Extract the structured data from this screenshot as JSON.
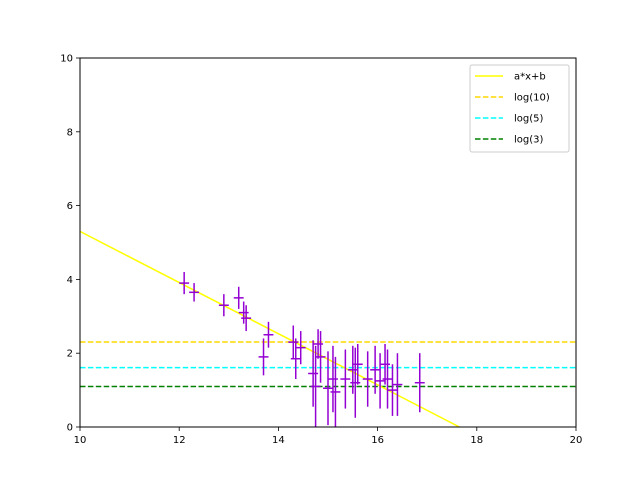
{
  "chart_data": {
    "type": "scatter",
    "title": "",
    "xlabel": "",
    "ylabel": "",
    "xlim": [
      10,
      20
    ],
    "ylim": [
      0,
      10
    ],
    "xticks": [
      10,
      12,
      14,
      16,
      18,
      20
    ],
    "yticks": [
      0,
      2,
      4,
      6,
      8,
      10
    ],
    "grid": false,
    "legend_position": "top-right",
    "series": [
      {
        "name": "a*x+b",
        "kind": "line",
        "style": "solid",
        "color": "#ffff00",
        "x": [
          10,
          17.65
        ],
        "y": [
          5.3,
          0
        ]
      },
      {
        "name": "log(10)",
        "kind": "hline",
        "style": "dashed",
        "color": "#ffd700",
        "y": 2.303
      },
      {
        "name": "log(5)",
        "kind": "hline",
        "style": "dashed",
        "color": "#00ffff",
        "y": 1.609
      },
      {
        "name": "log(3)",
        "kind": "hline",
        "style": "dashed",
        "color": "#008000",
        "y": 1.099
      }
    ],
    "errorbar_points": {
      "color": "#9400d3",
      "points": [
        {
          "x": 12.1,
          "y": 3.9,
          "xerr": 0.1,
          "yerr": 0.3
        },
        {
          "x": 12.3,
          "y": 3.65,
          "xerr": 0.1,
          "yerr": 0.25
        },
        {
          "x": 12.9,
          "y": 3.3,
          "xerr": 0.1,
          "yerr": 0.3
        },
        {
          "x": 13.2,
          "y": 3.5,
          "xerr": 0.1,
          "yerr": 0.3
        },
        {
          "x": 13.3,
          "y": 3.1,
          "xerr": 0.1,
          "yerr": 0.3
        },
        {
          "x": 13.35,
          "y": 2.95,
          "xerr": 0.1,
          "yerr": 0.35
        },
        {
          "x": 13.7,
          "y": 1.9,
          "xerr": 0.1,
          "yerr": 0.5
        },
        {
          "x": 13.8,
          "y": 2.5,
          "xerr": 0.1,
          "yerr": 0.35
        },
        {
          "x": 14.3,
          "y": 2.3,
          "xerr": 0.1,
          "yerr": 0.45
        },
        {
          "x": 14.35,
          "y": 1.85,
          "xerr": 0.1,
          "yerr": 0.55
        },
        {
          "x": 14.45,
          "y": 2.15,
          "xerr": 0.1,
          "yerr": 0.45
        },
        {
          "x": 14.7,
          "y": 1.45,
          "xerr": 0.1,
          "yerr": 0.9
        },
        {
          "x": 14.75,
          "y": 1.1,
          "xerr": 0.1,
          "yerr": 1.1
        },
        {
          "x": 14.8,
          "y": 2.25,
          "xerr": 0.1,
          "yerr": 0.4
        },
        {
          "x": 14.85,
          "y": 1.9,
          "xerr": 0.1,
          "yerr": 0.7
        },
        {
          "x": 15.0,
          "y": 1.05,
          "xerr": 0.1,
          "yerr": 1.0
        },
        {
          "x": 15.1,
          "y": 1.3,
          "xerr": 0.1,
          "yerr": 0.9
        },
        {
          "x": 15.15,
          "y": 0.95,
          "xerr": 0.1,
          "yerr": 0.95
        },
        {
          "x": 15.35,
          "y": 1.3,
          "xerr": 0.1,
          "yerr": 0.8
        },
        {
          "x": 15.5,
          "y": 1.55,
          "xerr": 0.1,
          "yerr": 0.65
        },
        {
          "x": 15.55,
          "y": 1.2,
          "xerr": 0.1,
          "yerr": 0.95
        },
        {
          "x": 15.6,
          "y": 1.7,
          "xerr": 0.1,
          "yerr": 0.55
        },
        {
          "x": 15.8,
          "y": 1.3,
          "xerr": 0.1,
          "yerr": 0.75
        },
        {
          "x": 15.95,
          "y": 1.55,
          "xerr": 0.1,
          "yerr": 0.65
        },
        {
          "x": 16.05,
          "y": 1.25,
          "xerr": 0.1,
          "yerr": 0.75
        },
        {
          "x": 16.15,
          "y": 1.7,
          "xerr": 0.1,
          "yerr": 0.55
        },
        {
          "x": 16.2,
          "y": 1.3,
          "xerr": 0.1,
          "yerr": 0.8
        },
        {
          "x": 16.3,
          "y": 1.0,
          "xerr": 0.1,
          "yerr": 0.7
        },
        {
          "x": 16.4,
          "y": 1.15,
          "xerr": 0.1,
          "yerr": 0.85
        },
        {
          "x": 16.85,
          "y": 1.2,
          "xerr": 0.1,
          "yerr": 0.8
        }
      ]
    }
  }
}
